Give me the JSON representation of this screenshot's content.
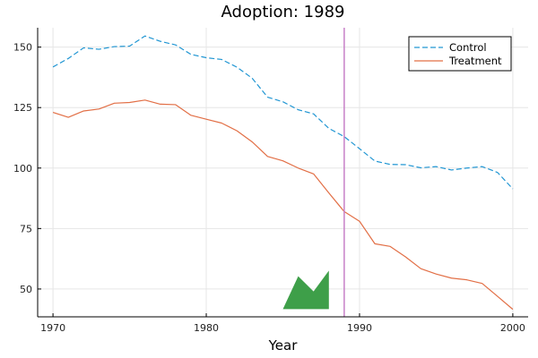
{
  "chart_data": {
    "type": "line",
    "title": "Adoption: 1989",
    "xlabel": "Year",
    "ylabel": "",
    "xlim": [
      1969,
      2001
    ],
    "ylim": [
      38.5,
      158
    ],
    "xticks": [
      1970,
      1980,
      1990,
      2000
    ],
    "yticks": [
      50,
      75,
      100,
      125,
      150
    ],
    "grid": true,
    "legend_position": "top-right",
    "x": [
      1970,
      1971,
      1972,
      1973,
      1974,
      1975,
      1976,
      1977,
      1978,
      1979,
      1980,
      1981,
      1982,
      1983,
      1984,
      1985,
      1986,
      1987,
      1988,
      1989,
      1990,
      1991,
      1992,
      1993,
      1994,
      1995,
      1996,
      1997,
      1998,
      1999,
      2000
    ],
    "series": [
      {
        "name": "Control",
        "color": "#2196d3",
        "dash": "dashed",
        "values": [
          141.8,
          145.3,
          149.7,
          149.1,
          150.2,
          150.4,
          154.6,
          152.4,
          150.9,
          147.0,
          145.6,
          144.9,
          141.7,
          137.1,
          129.3,
          127.4,
          124.1,
          122.4,
          116.4,
          113.0,
          108.0,
          102.9,
          101.5,
          101.4,
          100.1,
          100.6,
          99.2,
          100.0,
          100.6,
          98.2,
          91.4
        ]
      },
      {
        "name": "Treatment",
        "color": "#e26f46",
        "dash": "solid",
        "values": [
          123.0,
          121.0,
          123.6,
          124.4,
          126.8,
          127.1,
          128.1,
          126.4,
          126.2,
          121.8,
          120.2,
          118.6,
          115.4,
          110.8,
          104.8,
          103.0,
          100.0,
          97.6,
          89.7,
          82.0,
          78.0,
          68.7,
          67.6,
          63.3,
          58.4,
          56.2,
          54.5,
          53.8,
          52.3,
          47.0,
          41.6
        ]
      }
    ],
    "vline": {
      "x": 1989,
      "color": "#c77fc8"
    },
    "shape": {
      "color": "#3e9f49",
      "points": [
        [
          1985,
          41.7
        ],
        [
          1986,
          55.3
        ],
        [
          1987,
          49.0
        ],
        [
          1988,
          57.6
        ],
        [
          1988,
          41.7
        ]
      ]
    }
  }
}
